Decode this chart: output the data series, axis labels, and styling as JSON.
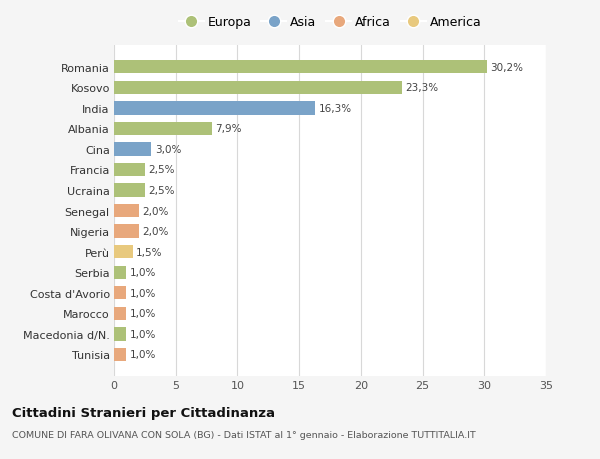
{
  "categories": [
    "Tunisia",
    "Macedonia d/N.",
    "Marocco",
    "Costa d'Avorio",
    "Serbia",
    "Perù",
    "Nigeria",
    "Senegal",
    "Ucraina",
    "Francia",
    "Cina",
    "Albania",
    "India",
    "Kosovo",
    "Romania"
  ],
  "values": [
    1.0,
    1.0,
    1.0,
    1.0,
    1.0,
    1.5,
    2.0,
    2.0,
    2.5,
    2.5,
    3.0,
    7.9,
    16.3,
    23.3,
    30.2
  ],
  "labels": [
    "1,0%",
    "1,0%",
    "1,0%",
    "1,0%",
    "1,0%",
    "1,5%",
    "2,0%",
    "2,0%",
    "2,5%",
    "2,5%",
    "3,0%",
    "7,9%",
    "16,3%",
    "23,3%",
    "30,2%"
  ],
  "colors": [
    "#e8a87c",
    "#adc178",
    "#e8a87c",
    "#e8a87c",
    "#adc178",
    "#e8c97e",
    "#e8a87c",
    "#e8a87c",
    "#adc178",
    "#adc178",
    "#7aa3c8",
    "#adc178",
    "#7aa3c8",
    "#adc178",
    "#adc178"
  ],
  "legend_labels": [
    "Europa",
    "Asia",
    "Africa",
    "America"
  ],
  "legend_colors": [
    "#adc178",
    "#7aa3c8",
    "#e8a87c",
    "#e8c97e"
  ],
  "title": "Cittadini Stranieri per Cittadinanza",
  "subtitle": "COMUNE DI FARA OLIVANA CON SOLA (BG) - Dati ISTAT al 1° gennaio - Elaborazione TUTTITALIA.IT",
  "xlim": [
    0,
    35
  ],
  "xticks": [
    0,
    5,
    10,
    15,
    20,
    25,
    30,
    35
  ],
  "bg_color": "#f5f5f5",
  "bar_bg_color": "#ffffff",
  "grid_color": "#d8d8d8"
}
